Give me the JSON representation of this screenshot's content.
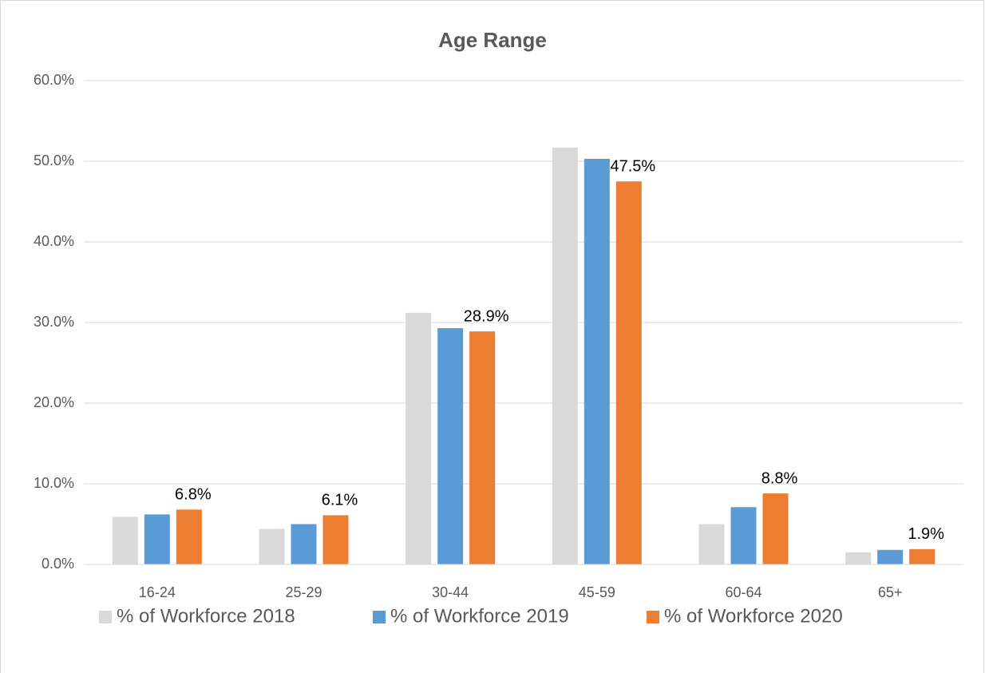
{
  "chart_data": {
    "type": "bar",
    "title": "Age Range",
    "categories": [
      "16-24",
      "25-29",
      "30-44",
      "45-59",
      "60-64",
      "65+"
    ],
    "series": [
      {
        "name": "% of Workforce 2018",
        "color": "#d9d9d9",
        "values": [
          5.9,
          4.4,
          31.2,
          51.7,
          5.0,
          1.5
        ]
      },
      {
        "name": "% of Workforce 2019",
        "color": "#5b9bd5",
        "values": [
          6.2,
          5.0,
          29.3,
          50.3,
          7.1,
          1.8
        ]
      },
      {
        "name": "% of Workforce 2020",
        "color": "#ed7d31",
        "values": [
          6.8,
          6.1,
          28.9,
          47.5,
          8.8,
          1.9
        ],
        "value_labels": [
          "6.8%",
          "6.1%",
          "28.9%",
          "47.5%",
          "8.8%",
          "1.9%"
        ]
      }
    ],
    "ylim": [
      0,
      60
    ],
    "yticks": [
      {
        "value": 0,
        "label": "0.0%"
      },
      {
        "value": 10,
        "label": "10.0%"
      },
      {
        "value": 20,
        "label": "20.0%"
      },
      {
        "value": 30,
        "label": "30.0%"
      },
      {
        "value": 40,
        "label": "40.0%"
      },
      {
        "value": 50,
        "label": "50.0%"
      },
      {
        "value": 60,
        "label": "60.0%"
      }
    ],
    "grid": true,
    "legend": "bottom"
  }
}
